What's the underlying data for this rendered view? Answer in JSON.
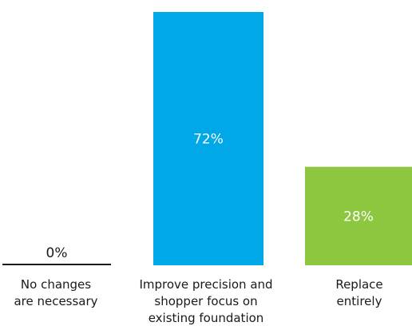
{
  "chart_data": {
    "type": "bar",
    "categories": [
      [
        "No changes",
        "are necessary"
      ],
      [
        "Improve precision and",
        "shopper focus on",
        "existing foundation"
      ],
      [
        "Replace",
        "entirely"
      ]
    ],
    "values": [
      0,
      72,
      28
    ],
    "value_labels": [
      "0%",
      "72%",
      "28%"
    ],
    "ylim": [
      0,
      100
    ],
    "colors": [
      "#1a1a1a",
      "#00a8e8",
      "#8dc63f"
    ],
    "title": "",
    "xlabel": "",
    "ylabel": "",
    "grid": false
  }
}
